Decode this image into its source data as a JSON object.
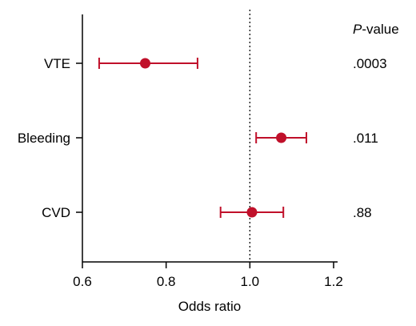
{
  "chart_data": {
    "type": "scatter",
    "xlabel": "Odds ratio",
    "xlim": [
      0.6,
      1.2
    ],
    "xticks": [
      "0.6",
      "0.8",
      "1.0",
      "1.2"
    ],
    "reference_line": 1.0,
    "categories": [
      "VTE",
      "Bleeding",
      "CVD"
    ],
    "series": [
      {
        "estimates": [
          0.75,
          1.075,
          1.005
        ],
        "ci_lower": [
          0.64,
          1.015,
          0.93
        ],
        "ci_upper": [
          0.875,
          1.135,
          1.08
        ]
      }
    ],
    "pvalue_header_italic": "P",
    "pvalue_header_rest": "-value",
    "pvalues": [
      ".0003",
      ".011",
      ".88"
    ],
    "grid": false,
    "color": "#c0102a"
  }
}
